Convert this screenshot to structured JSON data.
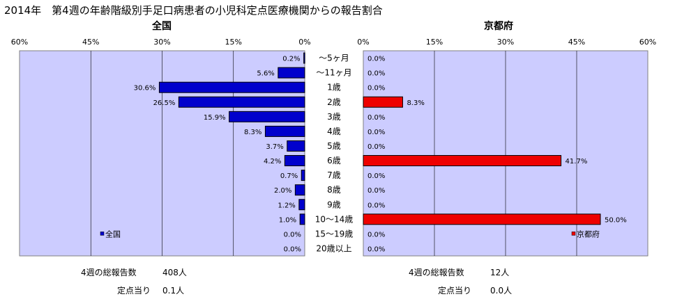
{
  "title": "2014年　第4週の年齢階級別手足口病患者の小児科定点医療機関からの報告割合",
  "colors": {
    "plot_bg": "#ccccff",
    "national_bar": "#0000cc",
    "kyoto_bar": "#ee0000",
    "bar_outline": "#000000"
  },
  "chart_data": [
    {
      "type": "bar",
      "orientation": "horizontal",
      "direction": "right-to-left",
      "title": "全国",
      "legend": "全国",
      "legend_position": "bottom-left",
      "xlim": [
        0,
        60
      ],
      "ticks": [
        "60%",
        "45%",
        "30%",
        "15%",
        "0%"
      ],
      "grid": true,
      "categories": [
        "〜5ヶ月",
        "〜11ヶ月",
        "1歳",
        "2歳",
        "3歳",
        "4歳",
        "5歳",
        "6歳",
        "7歳",
        "8歳",
        "9歳",
        "10〜14歳",
        "15〜19歳",
        "20歳以上"
      ],
      "values": [
        0.2,
        5.6,
        30.6,
        26.5,
        15.9,
        8.3,
        3.7,
        4.2,
        0.7,
        2.0,
        1.2,
        1.0,
        0.0,
        0.0
      ],
      "value_labels": [
        "0.2%",
        "5.6%",
        "30.6%",
        "26.5%",
        "15.9%",
        "8.3%",
        "3.7%",
        "4.2%",
        "0.7%",
        "2.0%",
        "1.2%",
        "1.0%",
        "0.0%",
        "0.0%"
      ]
    },
    {
      "type": "bar",
      "orientation": "horizontal",
      "direction": "left-to-right",
      "title": "京都府",
      "legend": "京都府",
      "legend_position": "bottom-right",
      "xlim": [
        0,
        60
      ],
      "ticks": [
        "0%",
        "15%",
        "30%",
        "45%",
        "60%"
      ],
      "grid": true,
      "categories": [
        "〜5ヶ月",
        "〜11ヶ月",
        "1歳",
        "2歳",
        "3歳",
        "4歳",
        "5歳",
        "6歳",
        "7歳",
        "8歳",
        "9歳",
        "10〜14歳",
        "15〜19歳",
        "20歳以上"
      ],
      "values": [
        0.0,
        0.0,
        0.0,
        8.3,
        0.0,
        0.0,
        0.0,
        41.7,
        0.0,
        0.0,
        0.0,
        50.0,
        0.0,
        0.0
      ],
      "value_labels": [
        "0.0%",
        "0.0%",
        "0.0%",
        "8.3%",
        "0.0%",
        "0.0%",
        "0.0%",
        "41.7%",
        "0.0%",
        "0.0%",
        "0.0%",
        "50.0%",
        "0.0%",
        "0.0%"
      ]
    }
  ],
  "summary": {
    "national": {
      "total_label": "4週の総報告数",
      "total_value": "408人",
      "per_site_label": "定点当り",
      "per_site_value": "0.1人"
    },
    "kyoto": {
      "total_label": "4週の総報告数",
      "total_value": "12人",
      "per_site_label": "定点当り",
      "per_site_value": "0.0人"
    }
  }
}
